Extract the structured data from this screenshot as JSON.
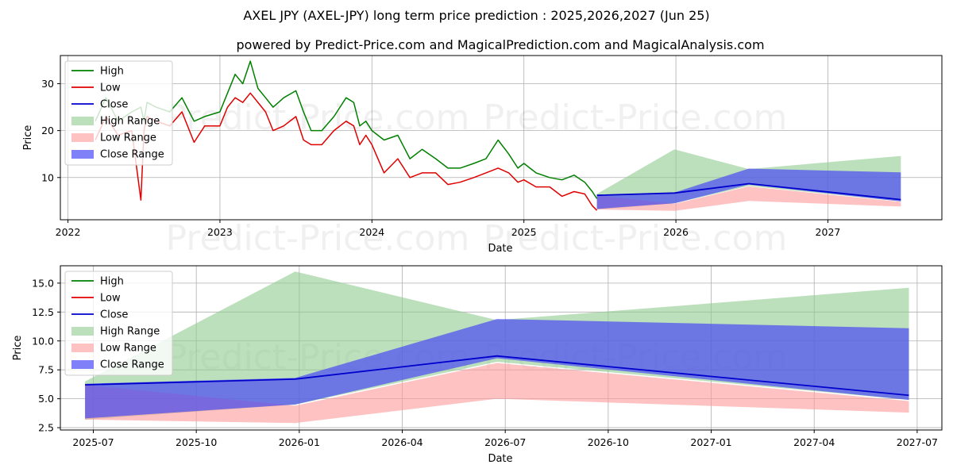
{
  "title": "AXEL JPY (AXEL-JPY) long term price prediction : 2025,2026,2027 (Jun 25)",
  "subtitle": "powered by Predict-Price.com and MagicalPrediction.com and MagicalAnalysis.com",
  "watermark": "Predict-Price.com",
  "colors": {
    "high": "#008000",
    "low": "#e00000",
    "close": "#0000cc",
    "high_range": "#8fc98f",
    "low_range": "#ff9a9a",
    "close_range": "#4a4af5",
    "grid": "#b0b0b0"
  },
  "legend": [
    {
      "key": "high",
      "label": "High",
      "kind": "line"
    },
    {
      "key": "low",
      "label": "Low",
      "kind": "line"
    },
    {
      "key": "close",
      "label": "Close",
      "kind": "line"
    },
    {
      "key": "high_range",
      "label": "High Range",
      "kind": "patch"
    },
    {
      "key": "low_range",
      "label": "Low Range",
      "kind": "patch"
    },
    {
      "key": "close_range",
      "label": "Close Range",
      "kind": "patch"
    }
  ],
  "chart_data": [
    {
      "type": "line",
      "name": "long-term",
      "xlabel": "Date",
      "ylabel": "Price",
      "xlim": [
        2021.95,
        2027.75
      ],
      "ylim": [
        1,
        36
      ],
      "xticks": [
        2022,
        2023,
        2024,
        2025,
        2026,
        2027
      ],
      "xtick_labels": [
        "2022",
        "2023",
        "2024",
        "2025",
        "2026",
        "2027"
      ],
      "yticks": [
        10,
        20,
        30
      ],
      "ytick_labels": [
        "10",
        "20",
        "30"
      ],
      "grid": true,
      "legend_position": "top-left",
      "history": {
        "dates": [
          2022.18,
          2022.25,
          2022.33,
          2022.42,
          2022.48,
          2022.5,
          2022.52,
          2022.58,
          2022.67,
          2022.75,
          2022.83,
          2022.9,
          2023.0,
          2023.05,
          2023.1,
          2023.15,
          2023.2,
          2023.25,
          2023.3,
          2023.35,
          2023.42,
          2023.5,
          2023.55,
          2023.6,
          2023.67,
          2023.75,
          2023.83,
          2023.88,
          2023.92,
          2023.96,
          2024.0,
          2024.08,
          2024.17,
          2024.25,
          2024.33,
          2024.42,
          2024.5,
          2024.58,
          2024.67,
          2024.75,
          2024.83,
          2024.9,
          2024.96,
          2025.0,
          2025.08,
          2025.17,
          2025.25,
          2025.33,
          2025.4,
          2025.45,
          2025.48
        ],
        "high": [
          22,
          27,
          22,
          24,
          25,
          22,
          26,
          25,
          24,
          27,
          22,
          23,
          24,
          28,
          32,
          30,
          34.8,
          29,
          27,
          25,
          27,
          28.5,
          24,
          20,
          20,
          23,
          27,
          26,
          21,
          22,
          20,
          18,
          19,
          14,
          16,
          14,
          12,
          12,
          13,
          14,
          18,
          15,
          12,
          13,
          11,
          10,
          9.5,
          10.5,
          9,
          7,
          5.5
        ],
        "low": [
          18,
          23,
          19,
          20,
          5.2,
          20,
          23,
          22,
          21,
          24,
          17.5,
          21,
          21,
          25,
          27,
          26,
          28,
          26,
          24,
          20,
          21,
          23,
          18,
          17,
          17,
          20,
          22,
          21,
          17,
          19,
          17,
          11,
          14,
          10,
          11,
          11,
          8.5,
          9,
          10,
          11,
          12,
          11,
          9,
          9.5,
          8,
          8,
          6,
          7,
          6.5,
          4,
          3
        ]
      },
      "forecast": {
        "dates": [
          2025.48,
          2025.99,
          2026.48,
          2027.48
        ],
        "close": [
          6.2,
          6.7,
          8.7,
          5.3
        ],
        "high_range": {
          "upper": [
            6.5,
            16.0,
            11.8,
            14.6
          ],
          "lower": [
            3.2,
            4.5,
            8.2,
            4.9
          ]
        },
        "low_range": {
          "upper": [
            6.2,
            4.4,
            8.1,
            4.8
          ],
          "lower": [
            3.2,
            2.9,
            5.0,
            3.8
          ]
        },
        "close_range": {
          "upper": [
            6.3,
            6.8,
            11.9,
            11.1
          ],
          "lower": [
            3.3,
            4.5,
            8.5,
            4.9
          ]
        }
      }
    },
    {
      "type": "area",
      "name": "forecast-zoom",
      "xlabel": "Date",
      "ylabel": "Price",
      "xlim": [
        2025.42,
        2027.56
      ],
      "ylim": [
        2.3,
        16.5
      ],
      "xticks": [
        2025.5,
        2025.75,
        2026.0,
        2026.25,
        2026.5,
        2026.75,
        2027.0,
        2027.25,
        2027.5
      ],
      "xtick_labels": [
        "2025-07",
        "2025-10",
        "2026-01",
        "2026-04",
        "2026-07",
        "2026-10",
        "2027-01",
        "2027-04",
        "2027-07"
      ],
      "yticks": [
        2.5,
        5.0,
        7.5,
        10.0,
        12.5,
        15.0
      ],
      "ytick_labels": [
        "2.5",
        "5.0",
        "7.5",
        "10.0",
        "12.5",
        "15.0"
      ],
      "grid": true,
      "legend_position": "top-left",
      "forecast": {
        "dates": [
          2025.48,
          2025.99,
          2026.48,
          2027.48
        ],
        "close": [
          6.2,
          6.7,
          8.7,
          5.3
        ],
        "high_range": {
          "upper": [
            6.5,
            16.0,
            11.8,
            14.6
          ],
          "lower": [
            3.2,
            4.5,
            8.2,
            4.9
          ]
        },
        "low_range": {
          "upper": [
            6.2,
            4.4,
            8.1,
            4.8
          ],
          "lower": [
            3.2,
            2.9,
            5.0,
            3.8
          ]
        },
        "close_range": {
          "upper": [
            6.3,
            6.8,
            11.9,
            11.1
          ],
          "lower": [
            3.3,
            4.5,
            8.5,
            4.9
          ]
        }
      }
    }
  ]
}
